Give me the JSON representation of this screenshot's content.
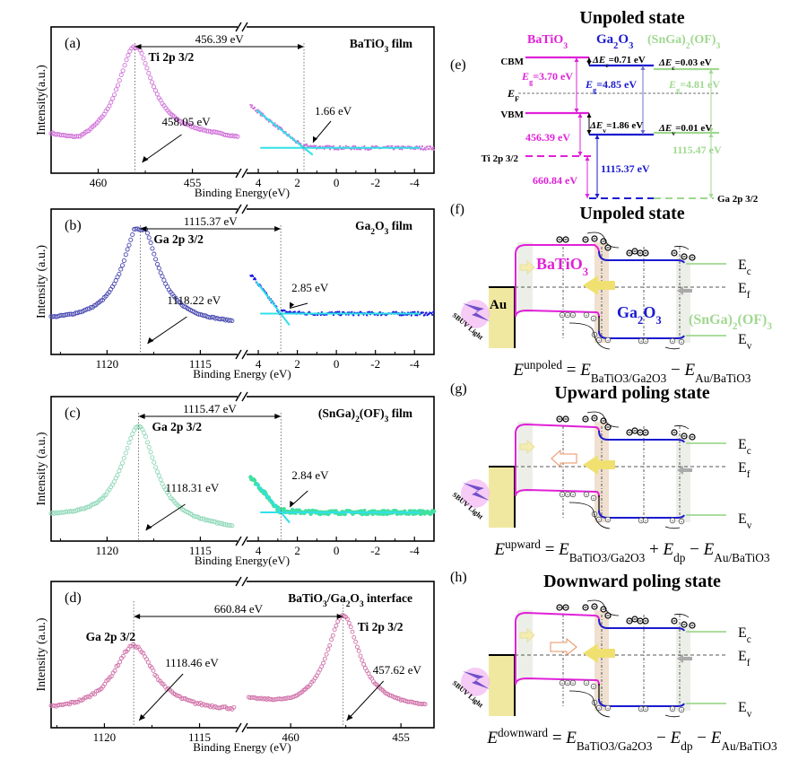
{
  "chart_data": [
    {
      "id": "a",
      "type": "scatter",
      "panel_label": "(a)",
      "title": "BaTiO3 film",
      "ylabel": "Intensity(a.u.)",
      "xlabel": "Binding Energy(eV)",
      "color": "#d070d8",
      "left_axis": {
        "range": [
          462.5,
          452.6
        ],
        "ticks": [
          460,
          455
        ],
        "minor": [
          457.5
        ]
      },
      "right_axis": {
        "range": [
          4.6,
          -5
        ],
        "ticks": [
          4,
          2,
          0,
          -2,
          -4
        ],
        "minor": [
          3,
          1,
          -1,
          -3
        ]
      },
      "core_peak": {
        "label": "Ti 2p 3/2",
        "position_eV": 458.05,
        "annotation": "458.05 eV"
      },
      "vbm": {
        "value_eV": 1.66,
        "annotation": "1.66 eV"
      },
      "separation": {
        "label": "456.39 eV",
        "value_eV": 456.39
      },
      "peak_width": 1.1,
      "peak_height": 0.78,
      "baseline_left": 0.22,
      "baseline_right": 0.08,
      "vb_start": 0.47,
      "vb_baseline": 0.12
    },
    {
      "id": "b",
      "type": "scatter",
      "panel_label": "(b)",
      "title": "Ga2O3 film",
      "ylabel": "Intensity (a.u.)",
      "xlabel": "Binding Energy (eV)",
      "color": "#4848b0",
      "vb_color": "#1a1adf",
      "left_axis": {
        "range": [
          1123,
          1113
        ],
        "ticks": [
          1120,
          1115
        ],
        "minor": [
          1122.5,
          1117.5
        ]
      },
      "right_axis": {
        "range": [
          4.6,
          -5
        ],
        "ticks": [
          4,
          2,
          0,
          -2,
          -4
        ],
        "minor": [
          3,
          1,
          -1,
          -3
        ]
      },
      "core_peak": {
        "label": "Ga 2p 3/2",
        "position_eV": 1118.22,
        "annotation": "1118.22 eV"
      },
      "vbm": {
        "value_eV": 2.85,
        "annotation": "2.85 eV"
      },
      "separation": {
        "label": "1115.37 eV",
        "value_eV": 1115.37
      },
      "peak_width": 1.1,
      "peak_height": 0.85,
      "baseline_left": 0.18,
      "baseline_right": 0.15,
      "vb_start": 0.58,
      "vb_baseline": 0.25
    },
    {
      "id": "c",
      "type": "scatter",
      "panel_label": "(c)",
      "title": "(SnGa)2(OF)3 film",
      "ylabel": "Intensity (a.u.)",
      "xlabel": "Binding Energy(eV)",
      "color": "#8fd8b8",
      "vb_color": "#40e0a0",
      "left_axis": {
        "range": [
          1123,
          1113
        ],
        "ticks": [
          1120,
          1115
        ],
        "minor": [
          1122.5,
          1117.5
        ]
      },
      "right_axis": {
        "range": [
          4.6,
          -5
        ],
        "ticks": [
          4,
          2,
          0,
          -2,
          -4
        ],
        "minor": [
          3,
          1,
          -1,
          -3
        ]
      },
      "core_peak": {
        "label": "Ga 2p 3/2",
        "position_eV": 1118.31,
        "annotation": "1118.31 eV"
      },
      "vbm": {
        "value_eV": 2.84,
        "annotation": "2.84 eV"
      },
      "separation": {
        "label": "1115.47 eV",
        "value_eV": 1115.47
      },
      "peak_width": 1.1,
      "peak_height": 0.82,
      "baseline_left": 0.1,
      "baseline_right": 0.0,
      "vb_start": 0.45,
      "vb_baseline": 0.15
    },
    {
      "id": "d",
      "type": "scatter",
      "panel_label": "(d)",
      "title": "BaTiO3/Ga2O3 interface",
      "ylabel": "Intensity (a.u.)",
      "xlabel": "Binding Energy (eV)",
      "color": "#d070a8",
      "left_axis": {
        "range": [
          1122.8,
          1113
        ],
        "ticks": [
          1120,
          1115
        ],
        "minor": [
          1122.5,
          1117.5
        ]
      },
      "right_axis": {
        "range": [
          462,
          453.5
        ],
        "ticks": [
          460,
          455
        ],
        "minor": [
          457.5
        ]
      },
      "peaks": [
        {
          "label": "Ga 2p 3/2",
          "position_eV": 1118.46,
          "annotation": "1118.46 eV"
        },
        {
          "label": "Ti 2p 3/2",
          "position_eV": 457.62,
          "annotation": "457.62 eV"
        }
      ],
      "separation": {
        "label": "660.84 eV",
        "value_eV": 660.84
      }
    }
  ],
  "diagram_e": {
    "panel_label": "(e)",
    "title": "Unpoled state",
    "materials": [
      {
        "name": "BaTiO3",
        "color": "#e020d8"
      },
      {
        "name": "Ga2O3",
        "color": "#1a1ad0"
      },
      {
        "name": "(SnGa)2(OF)3",
        "color": "#a0d890"
      }
    ],
    "labels": {
      "cbm": "CBM",
      "vbm": "VBM",
      "ef": "E",
      "ef_sub": "F",
      "ti_core": "Ti 2p 3/2",
      "ga_core": "Ga 2p 3/2"
    },
    "values": {
      "eg_batio3": "=3.70 eV",
      "eg_ga2o3": "=4.85 eV",
      "eg_snga": "=4.81 eV",
      "dec_1": "=0.71 eV",
      "dec_2": "=0.03 eV",
      "dev_1": "=1.86 eV",
      "dev_2": "=0.01 eV",
      "sep_ti": "456.39 eV",
      "sep_ga": "1115.37 eV",
      "sep_snga": "1115.47 eV",
      "sep_interface": "660.84 eV"
    }
  },
  "band_panels": [
    {
      "id": "f",
      "panel_label": "(f)",
      "title": "Unpoled state",
      "au_label": "Au",
      "batio3_label": "BaTiO",
      "ga2o3_label": "Ga",
      "snga_label": "(SnGa)",
      "light_label": "SBUV Light",
      "equation": {
        "lhs_sup": "unpoled",
        "terms": [
          "BaTiO3/Ga2O3",
          "Au/BaTiO3"
        ],
        "has_dp": false
      }
    },
    {
      "id": "g",
      "panel_label": "(g)",
      "title": "Upward poling state",
      "light_label": "SBUV Light",
      "polarization": "left",
      "equation": {
        "lhs_sup": "upward",
        "terms": [
          "BaTiO3/Ga2O3",
          "Au/BaTiO3"
        ],
        "dp_sign": "+"
      }
    },
    {
      "id": "h",
      "panel_label": "(h)",
      "title": "Downward poling state",
      "light_label": "SBUV Light",
      "polarization": "right",
      "equation": {
        "lhs_sup": "downward",
        "terms": [
          "BaTiO3/Ga2O3",
          "Au/BaTiO3"
        ],
        "dp_sign": "−"
      }
    }
  ],
  "band_labels": {
    "ec": "E",
    "ec_sub": "c",
    "ef": "E",
    "ef_sub": "f",
    "ev": "E",
    "ev_sub": "v"
  },
  "colors": {
    "batio3": "#e020d8",
    "ga2o3": "#1a1ad0",
    "snga": "#a0d890",
    "fit_line": "#30e0e8",
    "au": "#f0e8a0",
    "arrow_yellow": "#f0e070",
    "arrow_orange": "#e89060"
  }
}
